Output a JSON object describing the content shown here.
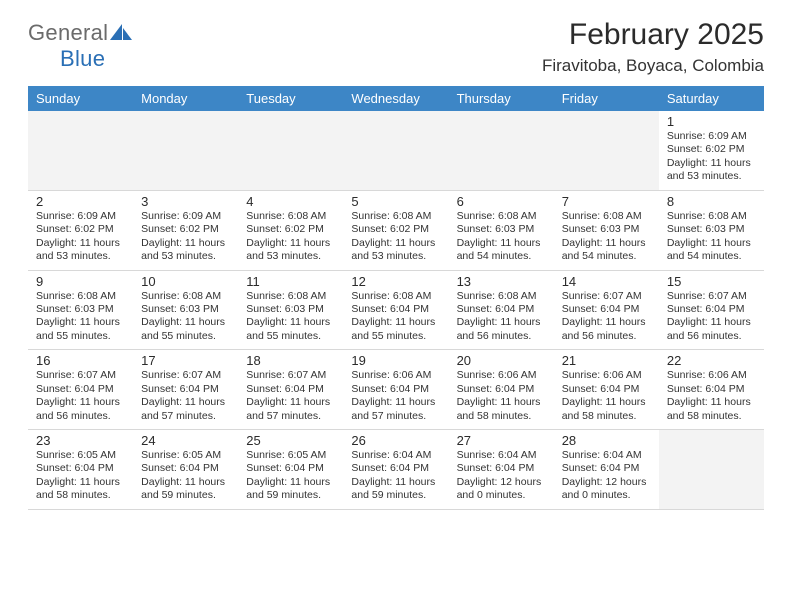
{
  "logo": {
    "general": "General",
    "blue": "Blue"
  },
  "header": {
    "title": "February 2025",
    "location": "Firavitoba, Boyaca, Colombia"
  },
  "weekdays": [
    "Sunday",
    "Monday",
    "Tuesday",
    "Wednesday",
    "Thursday",
    "Friday",
    "Saturday"
  ],
  "colors": {
    "header_bg": "#3d86c6",
    "header_text": "#ffffff",
    "logo_general": "#6b6b6b",
    "logo_blue": "#2a6fb5",
    "border": "#d8d8d8",
    "empty_bg": "#f3f3f3",
    "text": "#333333"
  },
  "weeks": [
    [
      null,
      null,
      null,
      null,
      null,
      null,
      {
        "n": "1",
        "sunrise": "Sunrise: 6:09 AM",
        "sunset": "Sunset: 6:02 PM",
        "day1": "Daylight: 11 hours",
        "day2": "and 53 minutes."
      }
    ],
    [
      {
        "n": "2",
        "sunrise": "Sunrise: 6:09 AM",
        "sunset": "Sunset: 6:02 PM",
        "day1": "Daylight: 11 hours",
        "day2": "and 53 minutes."
      },
      {
        "n": "3",
        "sunrise": "Sunrise: 6:09 AM",
        "sunset": "Sunset: 6:02 PM",
        "day1": "Daylight: 11 hours",
        "day2": "and 53 minutes."
      },
      {
        "n": "4",
        "sunrise": "Sunrise: 6:08 AM",
        "sunset": "Sunset: 6:02 PM",
        "day1": "Daylight: 11 hours",
        "day2": "and 53 minutes."
      },
      {
        "n": "5",
        "sunrise": "Sunrise: 6:08 AM",
        "sunset": "Sunset: 6:02 PM",
        "day1": "Daylight: 11 hours",
        "day2": "and 53 minutes."
      },
      {
        "n": "6",
        "sunrise": "Sunrise: 6:08 AM",
        "sunset": "Sunset: 6:03 PM",
        "day1": "Daylight: 11 hours",
        "day2": "and 54 minutes."
      },
      {
        "n": "7",
        "sunrise": "Sunrise: 6:08 AM",
        "sunset": "Sunset: 6:03 PM",
        "day1": "Daylight: 11 hours",
        "day2": "and 54 minutes."
      },
      {
        "n": "8",
        "sunrise": "Sunrise: 6:08 AM",
        "sunset": "Sunset: 6:03 PM",
        "day1": "Daylight: 11 hours",
        "day2": "and 54 minutes."
      }
    ],
    [
      {
        "n": "9",
        "sunrise": "Sunrise: 6:08 AM",
        "sunset": "Sunset: 6:03 PM",
        "day1": "Daylight: 11 hours",
        "day2": "and 55 minutes."
      },
      {
        "n": "10",
        "sunrise": "Sunrise: 6:08 AM",
        "sunset": "Sunset: 6:03 PM",
        "day1": "Daylight: 11 hours",
        "day2": "and 55 minutes."
      },
      {
        "n": "11",
        "sunrise": "Sunrise: 6:08 AM",
        "sunset": "Sunset: 6:03 PM",
        "day1": "Daylight: 11 hours",
        "day2": "and 55 minutes."
      },
      {
        "n": "12",
        "sunrise": "Sunrise: 6:08 AM",
        "sunset": "Sunset: 6:04 PM",
        "day1": "Daylight: 11 hours",
        "day2": "and 55 minutes."
      },
      {
        "n": "13",
        "sunrise": "Sunrise: 6:08 AM",
        "sunset": "Sunset: 6:04 PM",
        "day1": "Daylight: 11 hours",
        "day2": "and 56 minutes."
      },
      {
        "n": "14",
        "sunrise": "Sunrise: 6:07 AM",
        "sunset": "Sunset: 6:04 PM",
        "day1": "Daylight: 11 hours",
        "day2": "and 56 minutes."
      },
      {
        "n": "15",
        "sunrise": "Sunrise: 6:07 AM",
        "sunset": "Sunset: 6:04 PM",
        "day1": "Daylight: 11 hours",
        "day2": "and 56 minutes."
      }
    ],
    [
      {
        "n": "16",
        "sunrise": "Sunrise: 6:07 AM",
        "sunset": "Sunset: 6:04 PM",
        "day1": "Daylight: 11 hours",
        "day2": "and 56 minutes."
      },
      {
        "n": "17",
        "sunrise": "Sunrise: 6:07 AM",
        "sunset": "Sunset: 6:04 PM",
        "day1": "Daylight: 11 hours",
        "day2": "and 57 minutes."
      },
      {
        "n": "18",
        "sunrise": "Sunrise: 6:07 AM",
        "sunset": "Sunset: 6:04 PM",
        "day1": "Daylight: 11 hours",
        "day2": "and 57 minutes."
      },
      {
        "n": "19",
        "sunrise": "Sunrise: 6:06 AM",
        "sunset": "Sunset: 6:04 PM",
        "day1": "Daylight: 11 hours",
        "day2": "and 57 minutes."
      },
      {
        "n": "20",
        "sunrise": "Sunrise: 6:06 AM",
        "sunset": "Sunset: 6:04 PM",
        "day1": "Daylight: 11 hours",
        "day2": "and 58 minutes."
      },
      {
        "n": "21",
        "sunrise": "Sunrise: 6:06 AM",
        "sunset": "Sunset: 6:04 PM",
        "day1": "Daylight: 11 hours",
        "day2": "and 58 minutes."
      },
      {
        "n": "22",
        "sunrise": "Sunrise: 6:06 AM",
        "sunset": "Sunset: 6:04 PM",
        "day1": "Daylight: 11 hours",
        "day2": "and 58 minutes."
      }
    ],
    [
      {
        "n": "23",
        "sunrise": "Sunrise: 6:05 AM",
        "sunset": "Sunset: 6:04 PM",
        "day1": "Daylight: 11 hours",
        "day2": "and 58 minutes."
      },
      {
        "n": "24",
        "sunrise": "Sunrise: 6:05 AM",
        "sunset": "Sunset: 6:04 PM",
        "day1": "Daylight: 11 hours",
        "day2": "and 59 minutes."
      },
      {
        "n": "25",
        "sunrise": "Sunrise: 6:05 AM",
        "sunset": "Sunset: 6:04 PM",
        "day1": "Daylight: 11 hours",
        "day2": "and 59 minutes."
      },
      {
        "n": "26",
        "sunrise": "Sunrise: 6:04 AM",
        "sunset": "Sunset: 6:04 PM",
        "day1": "Daylight: 11 hours",
        "day2": "and 59 minutes."
      },
      {
        "n": "27",
        "sunrise": "Sunrise: 6:04 AM",
        "sunset": "Sunset: 6:04 PM",
        "day1": "Daylight: 12 hours",
        "day2": "and 0 minutes."
      },
      {
        "n": "28",
        "sunrise": "Sunrise: 6:04 AM",
        "sunset": "Sunset: 6:04 PM",
        "day1": "Daylight: 12 hours",
        "day2": "and 0 minutes."
      },
      null
    ]
  ]
}
